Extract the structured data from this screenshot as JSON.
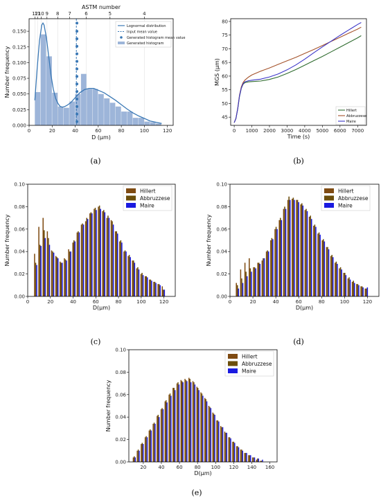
{
  "chart_data": [
    {
      "id": "a",
      "type": "bar",
      "caption": "(a)",
      "xlabel": "D (µm)",
      "ylabel": "Number frequency",
      "top_axis_label": "ASTM number",
      "xlim": [
        0,
        125
      ],
      "ylim": [
        0,
        0.17
      ],
      "xticks": [
        "0",
        "20",
        "40",
        "60",
        "80",
        "100",
        "120"
      ],
      "yticks": [
        "0.000",
        "0.025",
        "0.050",
        "0.075",
        "0.100",
        "0.125",
        "0.150"
      ],
      "top_ticks": [
        {
          "label": "12",
          "x": 5.2
        },
        {
          "label": "11",
          "x": 7.3
        },
        {
          "label": "10",
          "x": 10.4
        },
        {
          "label": "9",
          "x": 15.5
        },
        {
          "label": "8",
          "x": 24.8
        },
        {
          "label": "7",
          "x": 35.2
        },
        {
          "label": "6",
          "x": 49.6
        },
        {
          "label": "5",
          "x": 70.2
        },
        {
          "label": "4",
          "x": 100
        }
      ],
      "histogram": {
        "name": "Generated histogram",
        "color": "#9db5d9",
        "bin_start": 5,
        "bin_width": 5,
        "values": [
          0.053,
          0.145,
          0.11,
          0.052,
          0.03,
          0.028,
          0.038,
          0.05,
          0.082,
          0.058,
          0.058,
          0.05,
          0.043,
          0.036,
          0.03,
          0.022,
          0.022,
          0.012,
          0.012,
          0.006,
          0.005,
          0.003
        ]
      },
      "lognormal": {
        "name": "Lognormal distribution",
        "color": "#3a78b5",
        "x": [
          5,
          7,
          9,
          11,
          12,
          13,
          15,
          17,
          19,
          21,
          23,
          25,
          27,
          29,
          31,
          33,
          36,
          40,
          44,
          48,
          52,
          56,
          60,
          65,
          70,
          75,
          80,
          85,
          90,
          95,
          100,
          105,
          110,
          115
        ],
        "y": [
          0.04,
          0.09,
          0.135,
          0.16,
          0.163,
          0.16,
          0.14,
          0.11,
          0.08,
          0.058,
          0.043,
          0.035,
          0.03,
          0.029,
          0.03,
          0.032,
          0.036,
          0.044,
          0.052,
          0.057,
          0.059,
          0.059,
          0.056,
          0.052,
          0.046,
          0.04,
          0.033,
          0.026,
          0.02,
          0.015,
          0.011,
          0.007,
          0.005,
          0.003
        ]
      },
      "input_mean": {
        "name": "Input mean value",
        "x": 41,
        "color": "#3a78b5"
      },
      "generated_mean": {
        "name": "Generated histogram mean value",
        "color": "#3a78b5",
        "x": [
          41.5,
          41.5,
          41.5,
          41.5,
          41.5,
          41.5,
          41.5,
          41.5,
          41.5,
          41.5,
          41.5,
          41.5,
          41.5,
          41.5
        ],
        "y": [
          0.163,
          0.15,
          0.138,
          0.126,
          0.114,
          0.102,
          0.09,
          0.078,
          0.066,
          0.054,
          0.042,
          0.03,
          0.018,
          0.006
        ]
      },
      "legend_position": "top-right"
    },
    {
      "id": "b",
      "type": "line",
      "caption": "(b)",
      "xlabel": "Time (s)",
      "ylabel": "MGS (µm)",
      "xlim": [
        -200,
        7500
      ],
      "ylim": [
        42,
        81
      ],
      "xticks": [
        "0",
        "1000",
        "2000",
        "3000",
        "4000",
        "5000",
        "6000",
        "7000"
      ],
      "yticks": [
        "45",
        "50",
        "55",
        "60",
        "65",
        "70",
        "75",
        "80"
      ],
      "x": [
        0,
        100,
        200,
        300,
        400,
        500,
        600,
        800,
        1000,
        1500,
        2000,
        2500,
        3000,
        3500,
        4000,
        4500,
        5000,
        5500,
        6000,
        6500,
        7000,
        7200
      ],
      "series": [
        {
          "name": "Hillert",
          "color": "#2e6b2e",
          "values": [
            43.0,
            44.5,
            48.0,
            52.5,
            55.5,
            57.0,
            57.6,
            57.9,
            58.0,
            58.2,
            58.8,
            59.7,
            61.0,
            62.4,
            64.0,
            65.6,
            67.2,
            68.9,
            70.6,
            72.3,
            74.0,
            74.8
          ]
        },
        {
          "name": "Abbruzzese",
          "color": "#a4522a",
          "values": [
            43.0,
            44.6,
            48.3,
            53.0,
            56.0,
            57.6,
            58.5,
            59.6,
            60.4,
            61.8,
            63.0,
            64.3,
            65.6,
            66.9,
            68.3,
            69.7,
            71.2,
            72.7,
            74.2,
            75.7,
            77.2,
            77.9
          ]
        },
        {
          "name": "Maire",
          "color": "#3a34c8",
          "values": [
            43.0,
            44.5,
            48.1,
            52.7,
            55.6,
            57.2,
            57.9,
            58.3,
            58.5,
            58.9,
            59.7,
            60.8,
            62.3,
            64.1,
            66.2,
            68.5,
            70.7,
            72.8,
            74.9,
            76.9,
            78.9,
            79.6
          ]
        }
      ],
      "legend_position": "bottom-right"
    },
    {
      "id": "c",
      "type": "bar",
      "caption": "(c)",
      "xlabel": "D(µm)",
      "ylabel": "Number frequency",
      "xlim": [
        0,
        130
      ],
      "ylim": [
        0,
        0.1
      ],
      "xticks": [
        "0",
        "20",
        "40",
        "60",
        "80",
        "100",
        "120"
      ],
      "yticks": [
        "0.00",
        "0.02",
        "0.04",
        "0.06",
        "0.08",
        "0.10"
      ],
      "bin_start": 7,
      "bin_width": 3.75,
      "series": [
        {
          "name": "Hillert",
          "color": "#7f4b12",
          "values": [
            0.038,
            0.062,
            0.07,
            0.058,
            0.041,
            0.036,
            0.031,
            0.034,
            0.042,
            0.048,
            0.057,
            0.064,
            0.067,
            0.074,
            0.078,
            0.08,
            0.076,
            0.07,
            0.068,
            0.058,
            0.049,
            0.04,
            0.036,
            0.032,
            0.025,
            0.02,
            0.018,
            0.015,
            0.013,
            0.011,
            0.009
          ]
        },
        {
          "name": "Abbruzzese",
          "color": "#6b4e0b",
          "values": [
            0.03,
            0.046,
            0.059,
            0.052,
            0.04,
            0.035,
            0.03,
            0.033,
            0.04,
            0.05,
            0.058,
            0.065,
            0.07,
            0.075,
            0.079,
            0.081,
            0.077,
            0.072,
            0.067,
            0.058,
            0.05,
            0.041,
            0.037,
            0.032,
            0.026,
            0.021,
            0.018,
            0.015,
            0.013,
            0.011,
            0.006
          ]
        },
        {
          "name": "Maire",
          "color": "#1a1ae0",
          "values": [
            0.028,
            0.045,
            0.052,
            0.046,
            0.039,
            0.034,
            0.03,
            0.032,
            0.04,
            0.049,
            0.057,
            0.064,
            0.069,
            0.074,
            0.077,
            0.078,
            0.075,
            0.07,
            0.064,
            0.056,
            0.048,
            0.04,
            0.035,
            0.03,
            0.024,
            0.019,
            0.017,
            0.014,
            0.012,
            0.01,
            0.006
          ]
        }
      ],
      "legend_position": "top-right"
    },
    {
      "id": "d",
      "type": "bar",
      "caption": "(d)",
      "xlabel": "D(µm)",
      "ylabel": "Number frequency",
      "xlim": [
        0,
        130
      ],
      "ylim": [
        0,
        0.1
      ],
      "xticks": [
        "0",
        "20",
        "40",
        "60",
        "80",
        "100",
        "120"
      ],
      "yticks": [
        "0.00",
        "0.02",
        "0.04",
        "0.06",
        "0.08",
        "0.10"
      ],
      "bin_start": 6.5,
      "bin_width": 3.75,
      "series": [
        {
          "name": "Hillert",
          "color": "#7f4b12",
          "values": [
            0.012,
            0.024,
            0.03,
            0.034,
            0.026,
            0.03,
            0.032,
            0.04,
            0.05,
            0.06,
            0.068,
            0.078,
            0.086,
            0.087,
            0.086,
            0.082,
            0.077,
            0.071,
            0.063,
            0.056,
            0.05,
            0.044,
            0.036,
            0.03,
            0.025,
            0.021,
            0.016,
            0.013,
            0.011,
            0.009,
            0.007
          ]
        },
        {
          "name": "Abbruzzese",
          "color": "#6b4e0b",
          "values": [
            0.01,
            0.016,
            0.022,
            0.025,
            0.026,
            0.03,
            0.034,
            0.041,
            0.052,
            0.062,
            0.07,
            0.08,
            0.089,
            0.088,
            0.086,
            0.083,
            0.078,
            0.072,
            0.064,
            0.057,
            0.051,
            0.044,
            0.037,
            0.031,
            0.026,
            0.021,
            0.017,
            0.014,
            0.011,
            0.009,
            0.007
          ]
        },
        {
          "name": "Maire",
          "color": "#1a1ae0",
          "values": [
            0.007,
            0.012,
            0.018,
            0.022,
            0.025,
            0.029,
            0.034,
            0.04,
            0.051,
            0.06,
            0.068,
            0.078,
            0.086,
            0.086,
            0.084,
            0.081,
            0.076,
            0.069,
            0.062,
            0.055,
            0.049,
            0.042,
            0.035,
            0.029,
            0.024,
            0.019,
            0.015,
            0.012,
            0.01,
            0.008,
            0.008
          ]
        }
      ],
      "legend_position": "top-right"
    },
    {
      "id": "e",
      "type": "bar",
      "caption": "(e)",
      "xlabel": "D(µm)",
      "ylabel": "Number frequency",
      "xlim": [
        4,
        168
      ],
      "ylim": [
        0,
        0.1
      ],
      "xticks": [
        "20",
        "40",
        "60",
        "80",
        "100",
        "120",
        "140",
        "160"
      ],
      "yticks": [
        "0.00",
        "0.02",
        "0.04",
        "0.06",
        "0.08",
        "0.10"
      ],
      "bin_start": 10,
      "bin_width": 4.4,
      "series": [
        {
          "name": "Hillert",
          "color": "#7f4b12",
          "values": [
            0.004,
            0.01,
            0.016,
            0.022,
            0.028,
            0.034,
            0.041,
            0.047,
            0.054,
            0.06,
            0.066,
            0.07,
            0.073,
            0.074,
            0.075,
            0.072,
            0.067,
            0.062,
            0.057,
            0.05,
            0.044,
            0.037,
            0.032,
            0.027,
            0.022,
            0.018,
            0.014,
            0.011,
            0.008,
            0.006,
            0.004,
            0.002,
            0.001
          ]
        },
        {
          "name": "Abbruzzese",
          "color": "#6b4e0b",
          "values": [
            0.005,
            0.011,
            0.017,
            0.023,
            0.029,
            0.035,
            0.042,
            0.048,
            0.055,
            0.061,
            0.066,
            0.071,
            0.072,
            0.073,
            0.074,
            0.071,
            0.066,
            0.061,
            0.056,
            0.049,
            0.043,
            0.037,
            0.031,
            0.026,
            0.022,
            0.018,
            0.014,
            0.011,
            0.008,
            0.006,
            0.004,
            0.003,
            0.001
          ]
        },
        {
          "name": "Maire",
          "color": "#1a1ae0",
          "values": [
            0.004,
            0.01,
            0.016,
            0.022,
            0.028,
            0.034,
            0.04,
            0.047,
            0.053,
            0.059,
            0.064,
            0.069,
            0.071,
            0.072,
            0.071,
            0.069,
            0.064,
            0.059,
            0.054,
            0.048,
            0.042,
            0.036,
            0.031,
            0.026,
            0.021,
            0.017,
            0.013,
            0.01,
            0.008,
            0.006,
            0.004,
            0.003,
            0.002
          ]
        }
      ],
      "legend_position": "top-right"
    }
  ]
}
